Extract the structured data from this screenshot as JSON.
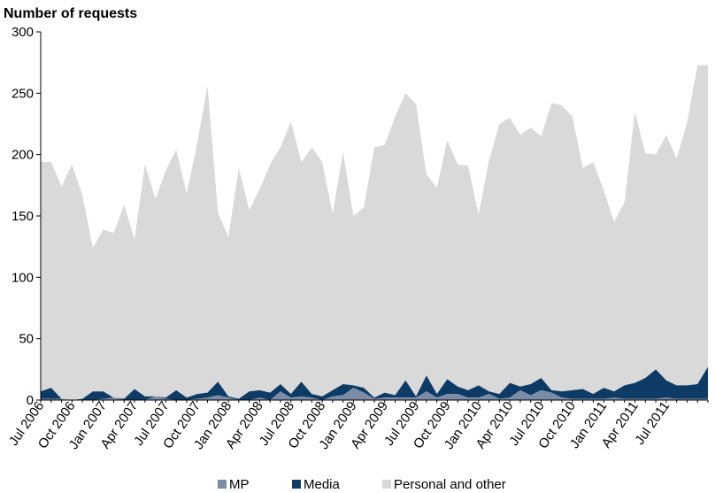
{
  "chart_data": {
    "type": "area",
    "stacked": true,
    "ylabel": "Number of requests",
    "ylim": [
      0,
      300
    ],
    "yticks": [
      0,
      50,
      100,
      150,
      200,
      250,
      300
    ],
    "x_start": "Jul 2006",
    "x_end": "Nov 2011",
    "xticks": [
      "Jul 2006",
      "Oct 2006",
      "Jan 2007",
      "Apr 2007",
      "Jul 2007",
      "Oct 2007",
      "Jan 2008",
      "Apr 2008",
      "Jul 2008",
      "Oct 2008",
      "Jan 2009",
      "Apr 2009",
      "Jul 2009",
      "Oct 2009",
      "Jan 2010",
      "Apr 2010",
      "Jul 2010",
      "Oct 2010",
      "Jan 2011",
      "Apr 2011",
      "Jul 2011"
    ],
    "grid": false,
    "legend": "bottom",
    "series": [
      {
        "name": "MP",
        "color": "#7a8ca6",
        "values": [
          1,
          1,
          1,
          0,
          0,
          0,
          1,
          2,
          0,
          0,
          0,
          3,
          1,
          0,
          0,
          1,
          2,
          4,
          2,
          0,
          0,
          2,
          0,
          7,
          2,
          3,
          2,
          0,
          3,
          4,
          10,
          6,
          1,
          2,
          2,
          2,
          2,
          7,
          2,
          5,
          5,
          2,
          2,
          5,
          1,
          2,
          8,
          4,
          8,
          6,
          2,
          1,
          1,
          1,
          1,
          2,
          1,
          1,
          1,
          1,
          2,
          1,
          1,
          1,
          1
        ]
      },
      {
        "name": "Media",
        "color": "#0d3b66",
        "values": [
          6,
          9,
          0,
          0,
          1,
          7,
          6,
          0,
          1,
          9,
          3,
          0,
          1,
          8,
          2,
          4,
          4,
          11,
          1,
          1,
          7,
          6,
          6,
          6,
          3,
          12,
          3,
          3,
          5,
          9,
          2,
          4,
          1,
          4,
          2,
          14,
          1,
          13,
          3,
          12,
          6,
          6,
          10,
          2,
          4,
          12,
          3,
          9,
          10,
          2,
          5,
          7,
          8,
          4,
          9,
          5,
          11,
          13,
          17,
          24,
          14,
          11,
          11,
          12,
          26
        ]
      },
      {
        "name": "Personal and other",
        "color": "#d9d9d9",
        "values": [
          187,
          184,
          173,
          192,
          166,
          117,
          132,
          134,
          158,
          122,
          189,
          161,
          185,
          196,
          166,
          204,
          250,
          138,
          130,
          188,
          148,
          164,
          186,
          193,
          222,
          179,
          201,
          191,
          144,
          189,
          138,
          147,
          204,
          202,
          227,
          234,
          238,
          164,
          168,
          195,
          181,
          183,
          139,
          188,
          220,
          216,
          205,
          209,
          197,
          234,
          233,
          223,
          180,
          189,
          161,
          138,
          149,
          221,
          183,
          175,
          200,
          185,
          214,
          260,
          246
        ]
      }
    ]
  }
}
